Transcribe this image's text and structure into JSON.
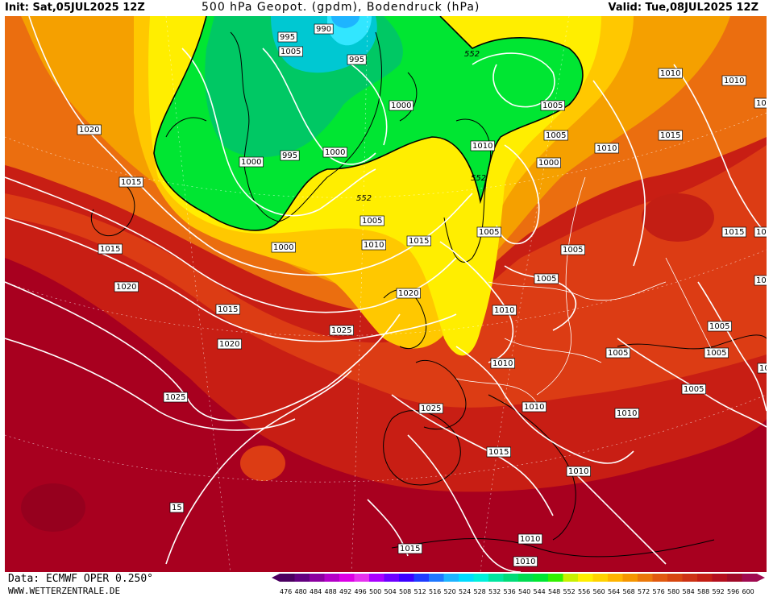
{
  "header": {
    "init": "Init: Sat,05JUL2025 12Z",
    "title": "500 hPa Geopot. (gpdm), Bodendruck (hPa)",
    "valid": "Valid: Tue,08JUL2025 12Z"
  },
  "footer": {
    "source": "Data: ECMWF OPER 0.250°",
    "website": "WWW.WETTERZENTRALE.DE"
  },
  "colors": {
    "deep_red": "#a8001f",
    "red": "#c81e14",
    "red_orange": "#dc3c14",
    "orange": "#eb6e0f",
    "light_orange": "#f5a000",
    "yellow_orange": "#ffc800",
    "yellow": "#ffee00",
    "green": "#00e632",
    "light_green": "#00c864",
    "cyan": "#00c8d2",
    "light_cyan": "#32e6ff",
    "contour": "#ffffff",
    "coast": "#000000"
  },
  "legend": {
    "values": [
      476,
      480,
      484,
      488,
      492,
      496,
      500,
      504,
      508,
      512,
      516,
      520,
      524,
      528,
      532,
      536,
      540,
      544,
      548,
      552,
      556,
      560,
      564,
      568,
      572,
      576,
      580,
      584,
      588,
      592,
      596,
      600
    ],
    "colors": [
      "#4b0060",
      "#640080",
      "#8c00a0",
      "#b400c8",
      "#dc00e6",
      "#e632f0",
      "#aa00ff",
      "#6e00ff",
      "#3c00ff",
      "#1e3cff",
      "#1e78ff",
      "#1eb4ff",
      "#00dcff",
      "#00f0dc",
      "#00e6a0",
      "#00dc78",
      "#00dc50",
      "#00e632",
      "#32f000",
      "#c8f000",
      "#ffee00",
      "#ffd200",
      "#ffb400",
      "#f59600",
      "#eb780a",
      "#e15a0f",
      "#d7460f",
      "#cd3214",
      "#c31e14",
      "#b40f1e",
      "#a00a28",
      "#a00a50"
    ]
  },
  "map": {
    "isobar_labels": [
      {
        "t": "990"
      },
      {
        "t": "995"
      },
      {
        "t": "995"
      },
      {
        "t": "995"
      },
      {
        "t": "1000"
      },
      {
        "t": "1000"
      },
      {
        "t": "1000"
      },
      {
        "t": "1000"
      },
      {
        "t": "1000"
      },
      {
        "t": "1005"
      },
      {
        "t": "1005"
      },
      {
        "t": "1005"
      },
      {
        "t": "1005"
      },
      {
        "t": "1005"
      },
      {
        "t": "1005"
      },
      {
        "t": "1005"
      },
      {
        "t": "1005"
      },
      {
        "t": "1005"
      },
      {
        "t": "1005"
      },
      {
        "t": "1005"
      },
      {
        "t": "1005"
      },
      {
        "t": "1010"
      },
      {
        "t": "1010"
      },
      {
        "t": "1010"
      },
      {
        "t": "1010"
      },
      {
        "t": "1010"
      },
      {
        "t": "1010"
      },
      {
        "t": "1010"
      },
      {
        "t": "1010"
      },
      {
        "t": "1010"
      },
      {
        "t": "1010"
      },
      {
        "t": "1010"
      },
      {
        "t": "1010"
      },
      {
        "t": "1010"
      },
      {
        "t": "1015"
      },
      {
        "t": "1015"
      },
      {
        "t": "1015"
      },
      {
        "t": "1015"
      },
      {
        "t": "1015"
      },
      {
        "t": "1015"
      },
      {
        "t": "1015"
      },
      {
        "t": "1015"
      },
      {
        "t": "1015"
      },
      {
        "t": "1020"
      },
      {
        "t": "1020"
      },
      {
        "t": "1020"
      },
      {
        "t": "1020"
      },
      {
        "t": "1020"
      },
      {
        "t": "1025"
      },
      {
        "t": "1025"
      },
      {
        "t": "1025"
      },
      {
        "t": "15"
      }
    ],
    "height_labels": [
      {
        "t": "552"
      },
      {
        "t": "552"
      },
      {
        "t": "552"
      }
    ]
  }
}
